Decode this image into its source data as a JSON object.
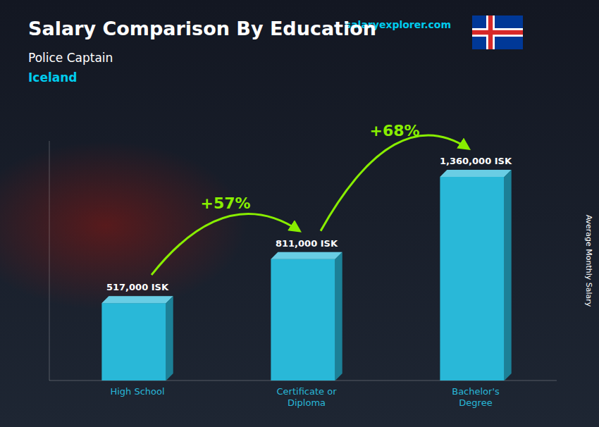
{
  "chart_data": {
    "type": "bar",
    "title": "Salary Comparison By Education",
    "subtitle": [
      "Police Captain",
      "Iceland"
    ],
    "ylabel": "Average Monthly Salary",
    "categories": [
      "High School",
      "Certificate or\nDiploma",
      "Bachelor's\nDegree"
    ],
    "values": [
      517000,
      811000,
      1360000
    ],
    "value_labels": [
      "517,000 ISK",
      "811,000 ISK",
      "1,360,000 ISK"
    ],
    "data_labels": true,
    "color": "#29b8d8",
    "ylim": [
      0,
      1600000
    ],
    "tick_labels": false,
    "grid": false,
    "annotations": [
      "+57%",
      "+68%",
      "salaryexplorer.com"
    ]
  }
}
